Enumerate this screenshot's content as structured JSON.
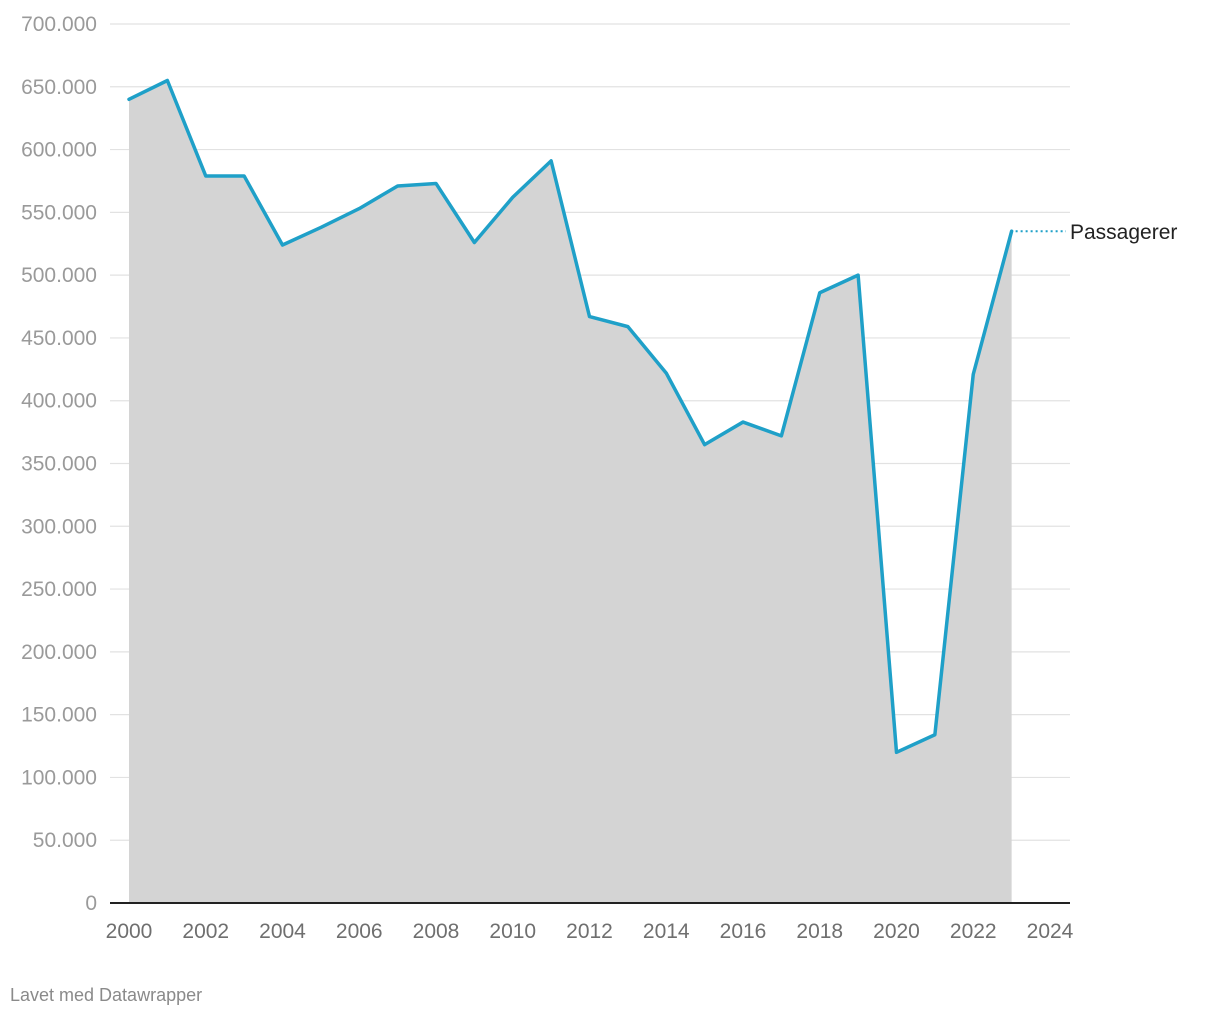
{
  "chart_data": {
    "type": "area",
    "x": [
      2000,
      2001,
      2002,
      2003,
      2004,
      2005,
      2006,
      2007,
      2008,
      2009,
      2010,
      2011,
      2012,
      2013,
      2014,
      2015,
      2016,
      2017,
      2018,
      2019,
      2020,
      2021,
      2022,
      2023
    ],
    "series": [
      {
        "name": "Passagerer",
        "values": [
          640000,
          655000,
          579000,
          579000,
          524000,
          538000,
          553000,
          571000,
          573000,
          526000,
          562000,
          591000,
          467000,
          459000,
          422000,
          365000,
          383000,
          372000,
          486000,
          500000,
          120000,
          134000,
          421000,
          535000
        ]
      }
    ],
    "xlim": [
      2000,
      2024
    ],
    "ylim": [
      0,
      700000
    ],
    "xticks": [
      "2000",
      "2002",
      "2004",
      "2006",
      "2008",
      "2010",
      "2012",
      "2014",
      "2016",
      "2018",
      "2020",
      "2022",
      "2024"
    ],
    "yticks": [
      "0",
      "50.000",
      "100.000",
      "150.000",
      "200.000",
      "250.000",
      "300.000",
      "350.000",
      "400.000",
      "450.000",
      "500.000",
      "550.000",
      "600.000",
      "650.000",
      "700.000"
    ],
    "grid": true,
    "colors": {
      "line": "#1fa0c8",
      "area": "#d4d4d4",
      "grid": "#e2e2e2",
      "axis": "#222222"
    }
  },
  "footer": {
    "credit": "Lavet med Datawrapper"
  }
}
